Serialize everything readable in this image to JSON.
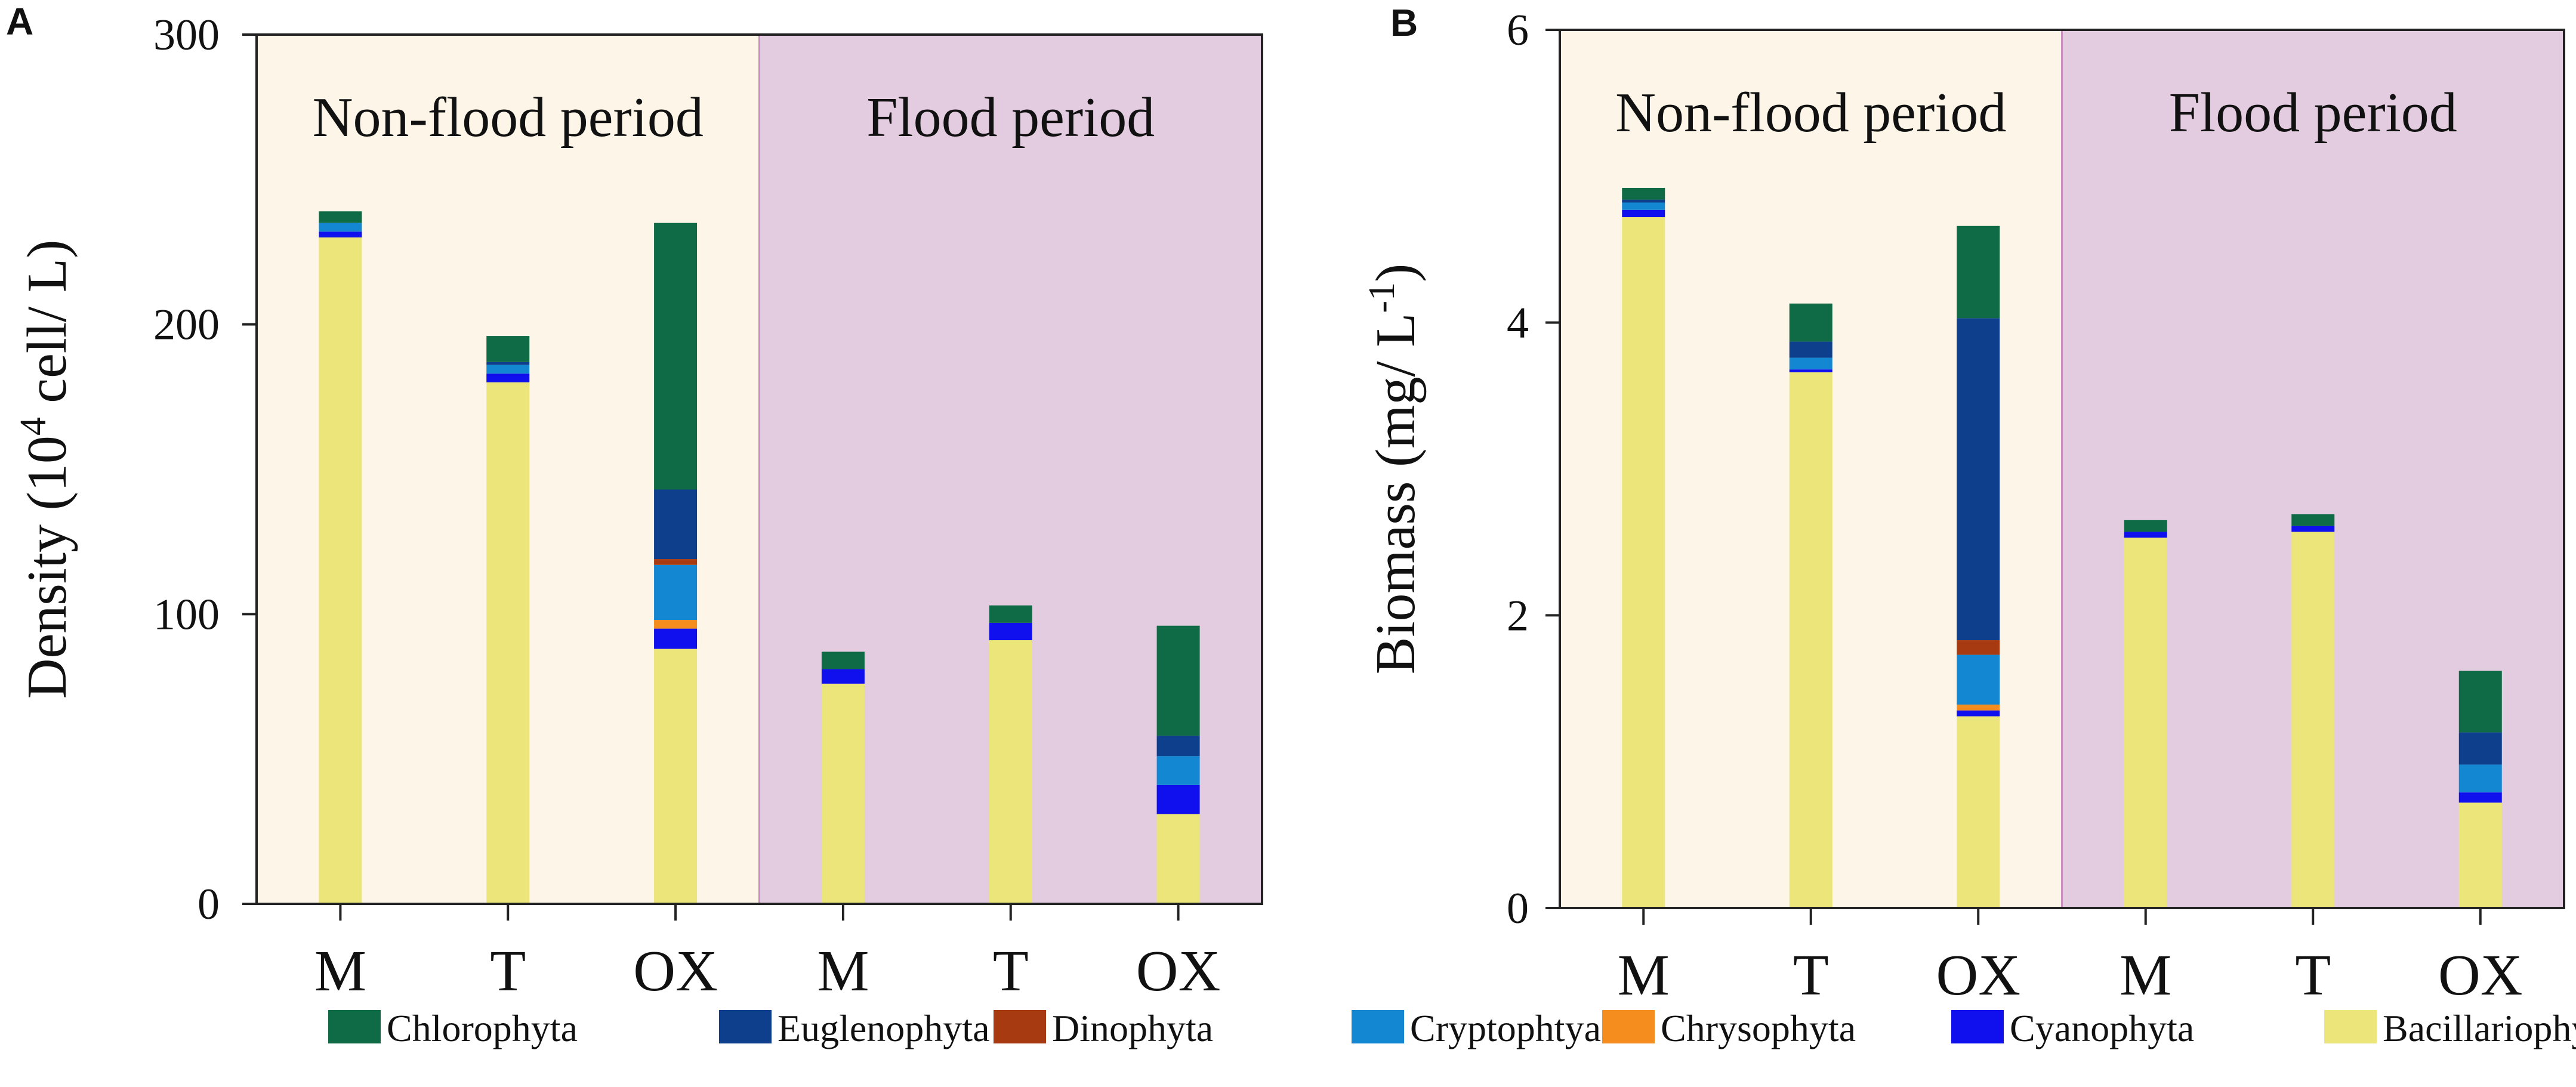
{
  "legend": [
    {
      "name": "Chlorophyta",
      "color": "#0f6b45"
    },
    {
      "name": "Euglenophyta",
      "color": "#0e3f8c"
    },
    {
      "name": "Dinophyta",
      "color": "#a83a12"
    },
    {
      "name": "Cryptophtya",
      "color": "#1487d2"
    },
    {
      "name": "Chrysophyta",
      "color": "#f58c1e"
    },
    {
      "name": "Cyanophyta",
      "color": "#1010ee"
    },
    {
      "name": "Bacillariophyta",
      "color": "#ece57a"
    }
  ],
  "colors": {
    "nonflood_bg": "#fdf6e8",
    "flood_bg": "#e3ccdf",
    "divider": "#c98fbf"
  },
  "chart_data": [
    {
      "type": "bar",
      "stacked": true,
      "panel": "A",
      "ylabel_main": "Density (10",
      "ylabel_sup": "4",
      "ylabel_rest": " cell/ L)",
      "ylim": [
        0,
        300
      ],
      "yticks": [
        "0",
        "100",
        "200",
        "300"
      ],
      "categories": [
        "M",
        "T",
        "OX",
        "M",
        "T",
        "OX"
      ],
      "periods": [
        {
          "label": "Non-flood period",
          "from": 0,
          "to": 3
        },
        {
          "label": "Flood period",
          "from": 3,
          "to": 6
        }
      ],
      "series": [
        {
          "name": "Bacillariophyta",
          "values": [
            230,
            180,
            88,
            76,
            91,
            31
          ]
        },
        {
          "name": "Cyanophyta",
          "values": [
            2,
            3,
            7,
            5,
            6,
            10
          ]
        },
        {
          "name": "Chrysophyta",
          "values": [
            0,
            0,
            3,
            0,
            0,
            0
          ]
        },
        {
          "name": "Cryptophtya",
          "values": [
            3,
            3,
            19,
            0,
            0,
            10
          ]
        },
        {
          "name": "Dinophyta",
          "values": [
            0,
            0,
            2,
            0,
            0,
            0
          ]
        },
        {
          "name": "Euglenophyta",
          "values": [
            0,
            1,
            24,
            0,
            0,
            7
          ]
        },
        {
          "name": "Chlorophyta",
          "values": [
            4,
            9,
            92,
            6,
            6,
            38
          ]
        }
      ]
    },
    {
      "type": "bar",
      "stacked": true,
      "panel": "B",
      "ylabel_main": "Biomass (mg/ L",
      "ylabel_sup": "-1",
      "ylabel_rest": ")",
      "ylim": [
        0,
        6
      ],
      "yticks": [
        "0",
        "2",
        "4",
        "6"
      ],
      "categories": [
        "M",
        "T",
        "OX",
        "M",
        "T",
        "OX"
      ],
      "periods": [
        {
          "label": "Non-flood period",
          "from": 0,
          "to": 3
        },
        {
          "label": "Flood period",
          "from": 3,
          "to": 6
        }
      ],
      "series": [
        {
          "name": "Bacillariophyta",
          "values": [
            4.72,
            3.66,
            1.31,
            2.53,
            2.57,
            0.72
          ]
        },
        {
          "name": "Cyanophyta",
          "values": [
            0.05,
            0.02,
            0.04,
            0.04,
            0.04,
            0.07
          ]
        },
        {
          "name": "Chrysophyta",
          "values": [
            0.0,
            0.0,
            0.04,
            0.0,
            0.0,
            0.0
          ]
        },
        {
          "name": "Cryptophtya",
          "values": [
            0.05,
            0.08,
            0.34,
            0.0,
            0.0,
            0.19
          ]
        },
        {
          "name": "Dinophyta",
          "values": [
            0.0,
            0.0,
            0.1,
            0.0,
            0.0,
            0.0
          ]
        },
        {
          "name": "Euglenophyta",
          "values": [
            0.02,
            0.11,
            2.2,
            0.0,
            0.0,
            0.22
          ]
        },
        {
          "name": "Chlorophyta",
          "values": [
            0.08,
            0.26,
            0.63,
            0.08,
            0.08,
            0.42
          ]
        }
      ]
    }
  ]
}
